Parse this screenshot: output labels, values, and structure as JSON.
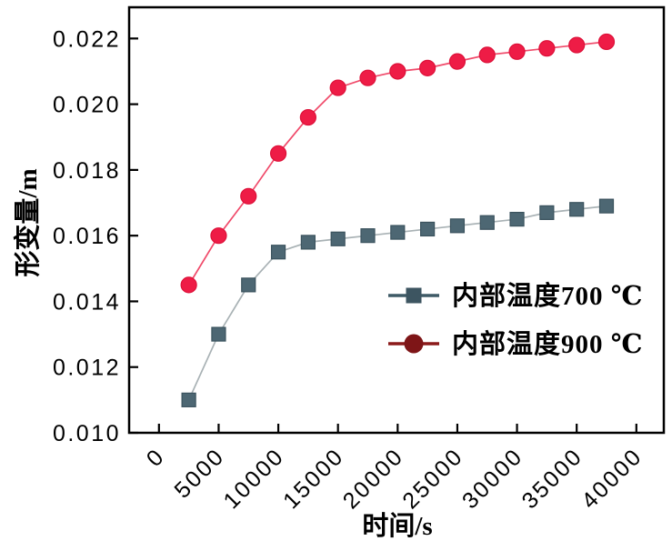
{
  "chart_data": {
    "type": "line",
    "title": "",
    "xlabel": "时间/s",
    "ylabel": "形变量/m",
    "grid": false,
    "legend_position": "inside-right-middle",
    "background": "#ffffff",
    "axis_color": "#000000",
    "text_color": "#000000",
    "xlim": [
      -2500,
      42300
    ],
    "ylim": [
      0.01,
      0.02295
    ],
    "x_ticks": [
      0,
      5000,
      10000,
      15000,
      20000,
      25000,
      30000,
      35000,
      40000
    ],
    "y_ticks": [
      0.01,
      0.012,
      0.014,
      0.016,
      0.018,
      0.02,
      0.022
    ],
    "x": [
      2500,
      5000,
      7500,
      10000,
      12500,
      15000,
      17500,
      20000,
      22500,
      25000,
      27500,
      30000,
      32500,
      35000,
      37500
    ],
    "series": [
      {
        "name": "内部温度700 ℃",
        "marker": "square",
        "values": [
          0.011,
          0.013,
          0.0145,
          0.0155,
          0.0158,
          0.0159,
          0.016,
          0.0161,
          0.0162,
          0.0163,
          0.0164,
          0.0165,
          0.0167,
          0.0168,
          0.0169
        ],
        "line_color": "#a9b2b5",
        "marker_fill": "#4d6773",
        "marker_edge": "#3a525d",
        "legend_line_color": "#3e5a66",
        "legend_marker_color": "#3d5561"
      },
      {
        "name": "内部温度900 ℃",
        "marker": "circle",
        "values": [
          0.0145,
          0.016,
          0.0172,
          0.0185,
          0.0196,
          0.0205,
          0.0208,
          0.021,
          0.0211,
          0.0213,
          0.0215,
          0.0216,
          0.0217,
          0.0218,
          0.0219
        ],
        "line_color": "#f04a6a",
        "marker_fill": "#ee1c46",
        "marker_edge": "#dd1038",
        "legend_line_color": "#8b1a1a",
        "legend_marker_color": "#7e1517"
      }
    ]
  }
}
